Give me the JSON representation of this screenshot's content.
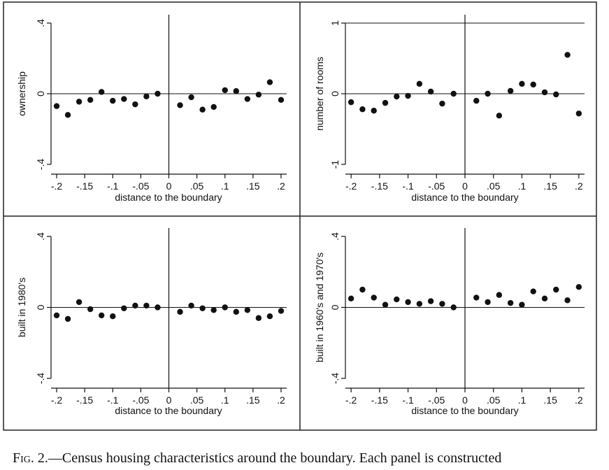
{
  "chart_data": [
    {
      "type": "scatter",
      "ylabel": "ownership",
      "xlabel": "distance to the boundary",
      "xlim": [
        -0.21,
        0.21
      ],
      "ylim": [
        -0.4,
        0.4
      ],
      "xticks": [
        "-.2",
        "-.15",
        "-.1",
        "-.05",
        "0",
        ".05",
        ".1",
        ".15",
        ".2"
      ],
      "yticks": [
        {
          "value": -0.4,
          "label": "-.4"
        },
        {
          "value": 0,
          "label": "0"
        },
        {
          "value": 0.4,
          "label": ".4"
        }
      ],
      "top_line": false,
      "points": [
        [
          -0.2,
          -0.07
        ],
        [
          -0.18,
          -0.12
        ],
        [
          -0.16,
          -0.045
        ],
        [
          -0.14,
          -0.035
        ],
        [
          -0.12,
          0.01
        ],
        [
          -0.1,
          -0.04
        ],
        [
          -0.08,
          -0.03
        ],
        [
          -0.06,
          -0.06
        ],
        [
          -0.04,
          -0.015
        ],
        [
          -0.02,
          0.0
        ],
        [
          0.02,
          -0.065
        ],
        [
          0.04,
          -0.02
        ],
        [
          0.06,
          -0.09
        ],
        [
          0.08,
          -0.075
        ],
        [
          0.1,
          0.02
        ],
        [
          0.12,
          0.015
        ],
        [
          0.14,
          -0.03
        ],
        [
          0.16,
          -0.005
        ],
        [
          0.18,
          0.065
        ],
        [
          0.2,
          -0.035
        ]
      ]
    },
    {
      "type": "scatter",
      "ylabel": "number of rooms",
      "xlabel": "distance to the boundary",
      "xlim": [
        -0.21,
        0.21
      ],
      "ylim": [
        -1.0,
        1.0
      ],
      "xticks": [
        "-.2",
        "-.15",
        "-.1",
        "-.05",
        "0",
        ".05",
        ".1",
        ".15",
        ".2"
      ],
      "yticks": [
        {
          "value": -1,
          "label": "-1"
        },
        {
          "value": 0,
          "label": "0"
        },
        {
          "value": 1,
          "label": "1"
        }
      ],
      "top_line": true,
      "points": [
        [
          -0.2,
          -0.12
        ],
        [
          -0.18,
          -0.22
        ],
        [
          -0.16,
          -0.24
        ],
        [
          -0.14,
          -0.13
        ],
        [
          -0.12,
          -0.04
        ],
        [
          -0.1,
          -0.03
        ],
        [
          -0.08,
          0.14
        ],
        [
          -0.06,
          0.03
        ],
        [
          -0.04,
          -0.14
        ],
        [
          -0.02,
          0.0
        ],
        [
          0.02,
          -0.1
        ],
        [
          0.04,
          0.0
        ],
        [
          0.06,
          -0.31
        ],
        [
          0.08,
          0.04
        ],
        [
          0.1,
          0.14
        ],
        [
          0.12,
          0.13
        ],
        [
          0.14,
          0.02
        ],
        [
          0.16,
          -0.01
        ],
        [
          0.18,
          0.55
        ],
        [
          0.2,
          -0.28
        ]
      ]
    },
    {
      "type": "scatter",
      "ylabel": "built in 1980's",
      "xlabel": "distance to the boundary",
      "xlim": [
        -0.21,
        0.21
      ],
      "ylim": [
        -0.4,
        0.4
      ],
      "xticks": [
        "-.2",
        "-.15",
        "-.1",
        "-.05",
        "0",
        ".05",
        ".1",
        ".15",
        ".2"
      ],
      "yticks": [
        {
          "value": -0.4,
          "label": "-.4"
        },
        {
          "value": 0,
          "label": "0"
        },
        {
          "value": 0.4,
          "label": ".4"
        }
      ],
      "top_line": false,
      "points": [
        [
          -0.2,
          -0.045
        ],
        [
          -0.18,
          -0.065
        ],
        [
          -0.16,
          0.03
        ],
        [
          -0.14,
          -0.01
        ],
        [
          -0.12,
          -0.045
        ],
        [
          -0.1,
          -0.05
        ],
        [
          -0.08,
          -0.005
        ],
        [
          -0.06,
          0.01
        ],
        [
          -0.04,
          0.01
        ],
        [
          -0.02,
          0.0
        ],
        [
          0.02,
          -0.025
        ],
        [
          0.04,
          0.01
        ],
        [
          0.06,
          -0.005
        ],
        [
          0.08,
          -0.015
        ],
        [
          0.1,
          0.0
        ],
        [
          0.12,
          -0.025
        ],
        [
          0.14,
          -0.015
        ],
        [
          0.16,
          -0.06
        ],
        [
          0.18,
          -0.05
        ],
        [
          0.2,
          -0.02
        ]
      ]
    },
    {
      "type": "scatter",
      "ylabel": "built in 1960's and 1970's",
      "xlabel": "distance to the boundary",
      "xlim": [
        -0.21,
        0.21
      ],
      "ylim": [
        -0.4,
        0.4
      ],
      "xticks": [
        "-.2",
        "-.15",
        "-.1",
        "-.05",
        "0",
        ".05",
        ".1",
        ".15",
        ".2"
      ],
      "yticks": [
        {
          "value": -0.4,
          "label": "-.4"
        },
        {
          "value": 0,
          "label": "0"
        },
        {
          "value": 0.4,
          "label": ".4"
        }
      ],
      "top_line": false,
      "points": [
        [
          -0.2,
          0.05
        ],
        [
          -0.18,
          0.1
        ],
        [
          -0.16,
          0.055
        ],
        [
          -0.14,
          0.015
        ],
        [
          -0.12,
          0.045
        ],
        [
          -0.1,
          0.03
        ],
        [
          -0.08,
          0.02
        ],
        [
          -0.06,
          0.035
        ],
        [
          -0.04,
          0.02
        ],
        [
          -0.02,
          0.0
        ],
        [
          0.02,
          0.055
        ],
        [
          0.04,
          0.03
        ],
        [
          0.06,
          0.07
        ],
        [
          0.08,
          0.025
        ],
        [
          0.1,
          0.015
        ],
        [
          0.12,
          0.09
        ],
        [
          0.14,
          0.05
        ],
        [
          0.16,
          0.1
        ],
        [
          0.18,
          0.04
        ],
        [
          0.2,
          0.115
        ]
      ]
    }
  ],
  "caption": {
    "label": "Fig. 2.",
    "text": "—Census housing characteristics around the boundary. Each panel is constructed"
  },
  "colors": {
    "ink": "#111111",
    "frame": "#222222",
    "background": "#ffffff"
  }
}
